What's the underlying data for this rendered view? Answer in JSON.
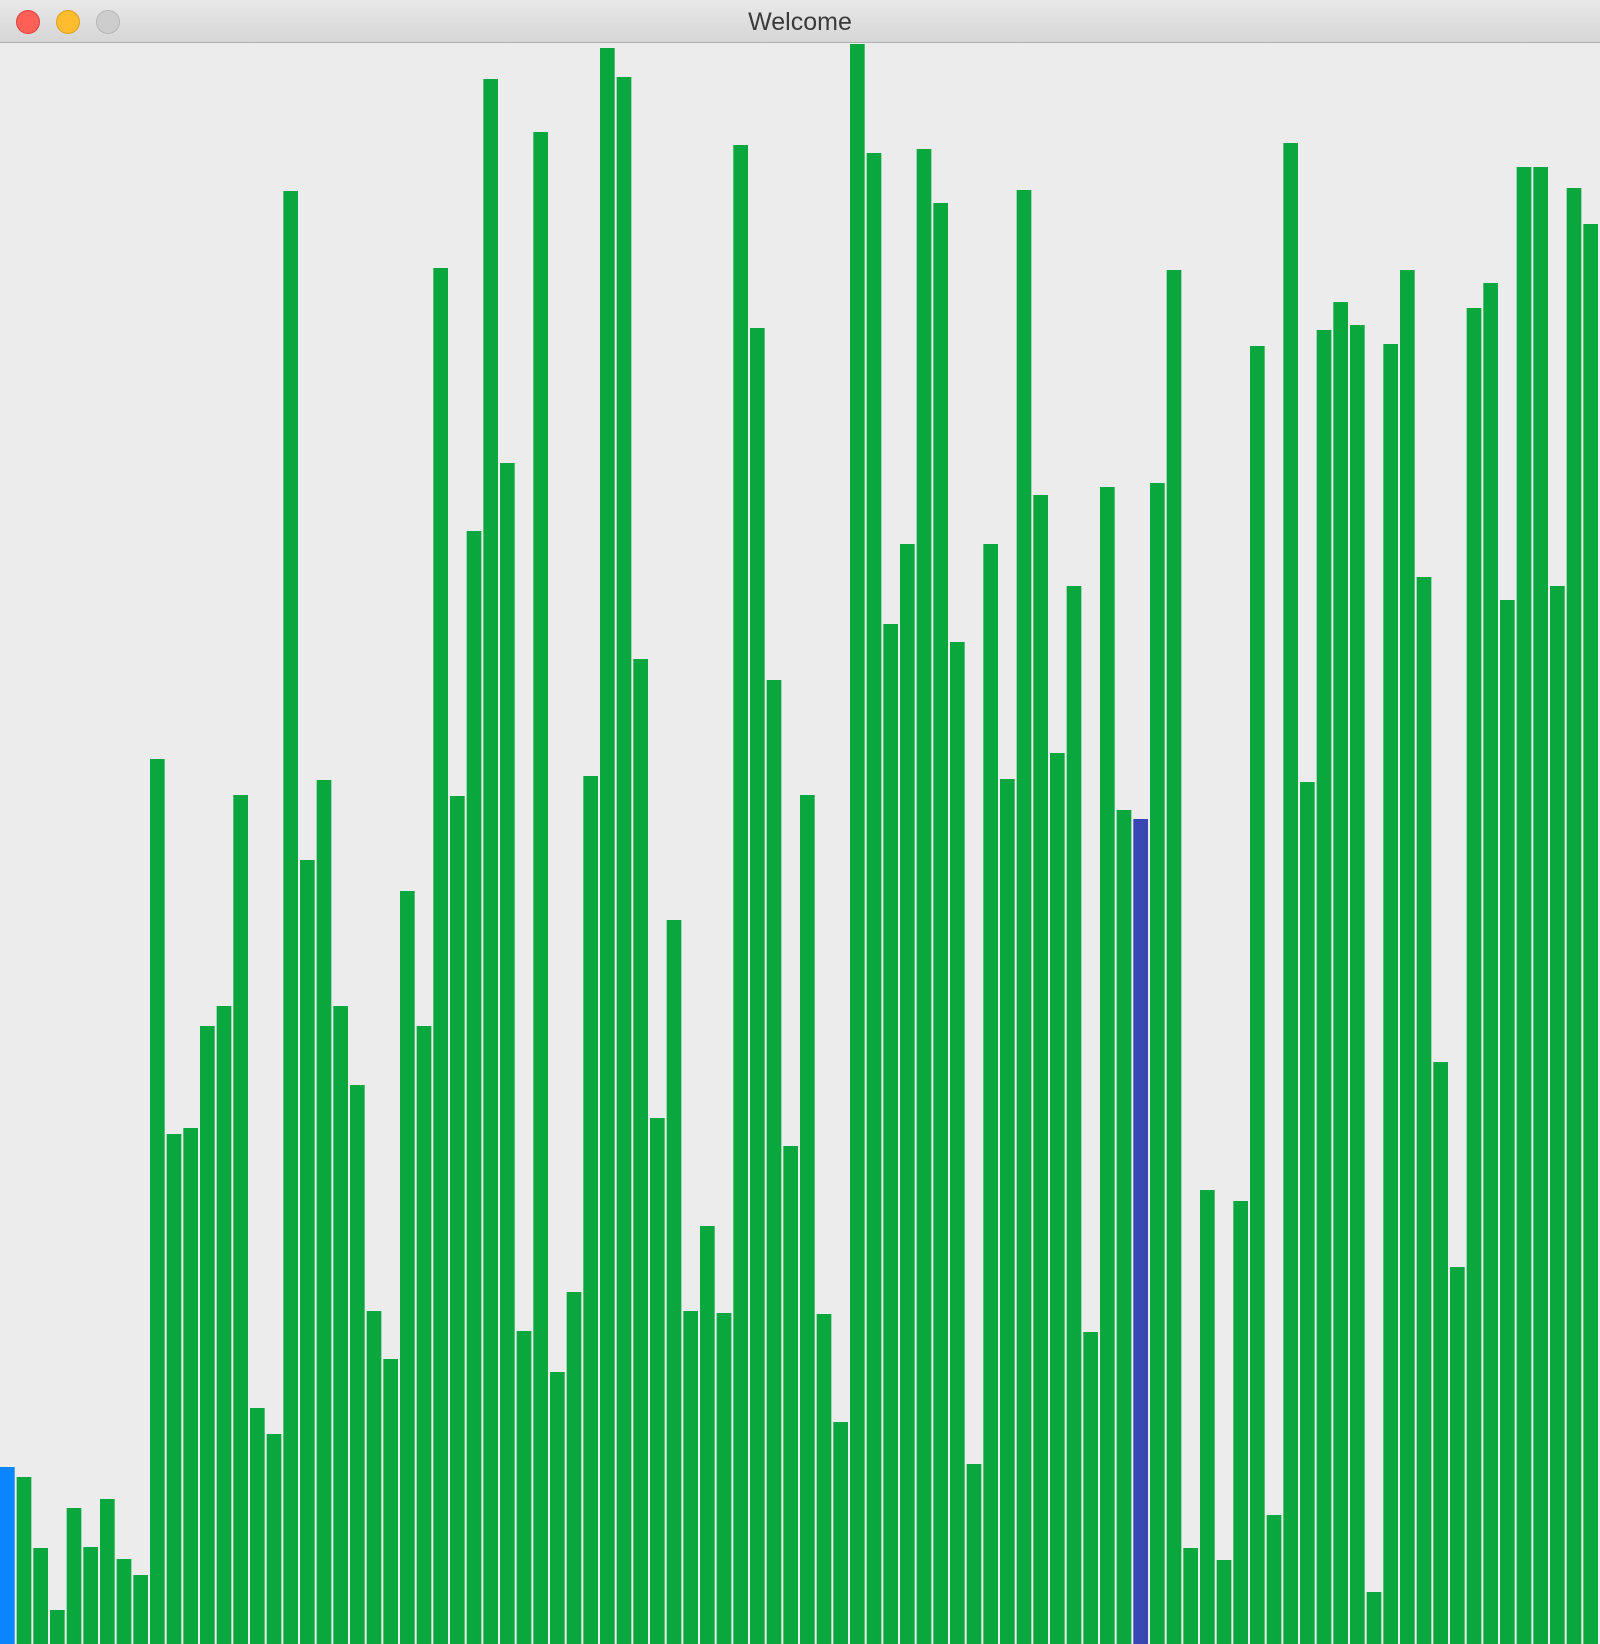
{
  "window": {
    "title": "Welcome"
  },
  "colors": {
    "background": "#ececec",
    "bar_default": "#0aa73e",
    "bar_current": "#0a84ff",
    "bar_compare": "#3846b4"
  },
  "visualizer": {
    "type": "sorting-bars",
    "max_value": 1600,
    "current_index": 0,
    "compare_index": 68,
    "values": [
      177,
      167,
      96,
      34,
      136,
      97,
      145,
      85,
      69,
      885,
      510,
      516,
      618,
      638,
      849,
      236,
      210,
      1453,
      784,
      864,
      638,
      559,
      333,
      285,
      753,
      618,
      1376,
      848,
      1113,
      1565,
      1181,
      313,
      1512,
      272,
      352,
      868,
      1596,
      1567,
      985,
      526,
      724,
      333,
      418,
      331,
      1499,
      1316,
      964,
      498,
      849,
      330,
      222,
      1610,
      1491,
      1020,
      1100,
      1495,
      1441,
      1002,
      180,
      1100,
      865,
      1454,
      1149,
      891,
      1058,
      312,
      1157,
      834,
      825,
      1161,
      1374,
      96,
      454,
      84,
      443,
      1298,
      129,
      1501,
      862,
      1314,
      1342,
      1319,
      52,
      1300,
      1374,
      1067,
      582,
      377,
      1336,
      1361,
      1044,
      1477,
      1477,
      1058,
      1456,
      1420
    ]
  }
}
